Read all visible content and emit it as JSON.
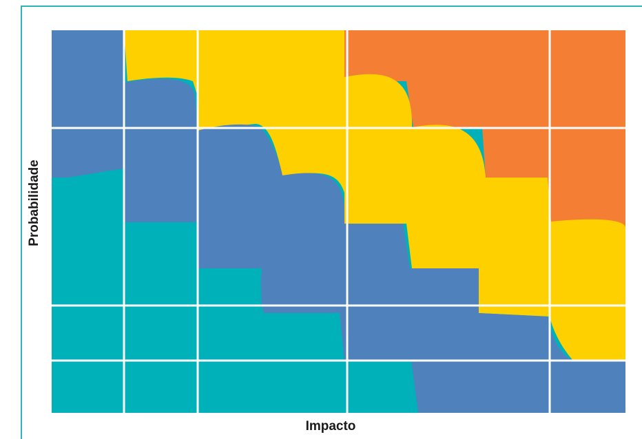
{
  "axes": {
    "x_label": "Impacto",
    "y_label": "Probabilidade"
  },
  "colors": {
    "frame": "#2ab3b9",
    "teal": "#00b1b9",
    "blue": "#4f81bd",
    "yellow": "#fed000",
    "orange": "#f47f34",
    "grid": "#ffffff"
  },
  "grid": {
    "columns": 6,
    "rows": 5
  }
}
